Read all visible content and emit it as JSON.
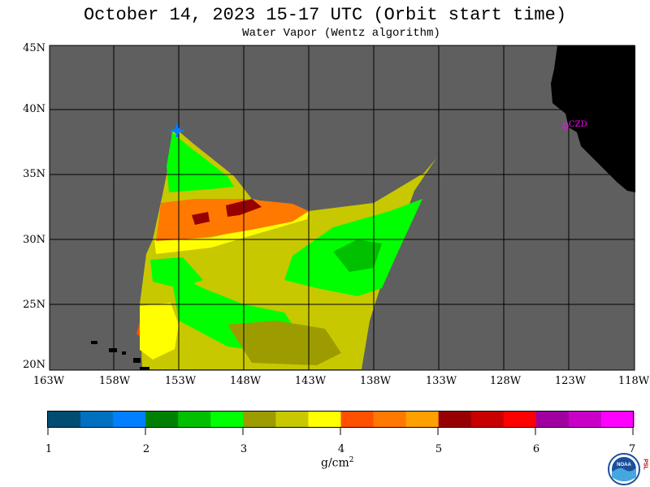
{
  "title": "October 14, 2023  15-17 UTC  (Orbit start time)",
  "subtitle": "Water Vapor (Wentz algorithm)",
  "lat_labels": [
    "45N",
    "40N",
    "35N",
    "30N",
    "25N",
    "20N"
  ],
  "lon_labels": [
    "163W",
    "158W",
    "153W",
    "148W",
    "143W",
    "138W",
    "133W",
    "128W",
    "123W",
    "118W"
  ],
  "station_label": "CZD",
  "colorbar": {
    "tick_labels": [
      "1",
      "2",
      "3",
      "4",
      "5",
      "6",
      "7"
    ],
    "units_base": "g/cm",
    "units_exp": "2",
    "colors": [
      "#004c73",
      "#0070c0",
      "#0080ff",
      "#008000",
      "#00c000",
      "#00ff00",
      "#9c9c00",
      "#c8c800",
      "#ffff00",
      "#ff5000",
      "#ff7800",
      "#ffa000",
      "#960000",
      "#c80000",
      "#ff0000",
      "#a000a0",
      "#c800c8",
      "#ff00ff"
    ]
  },
  "colors": {
    "background": "#5f5f5f",
    "land": "#000000",
    "grid": "#000000"
  },
  "logo": {
    "text": "NOAA",
    "side_letters": "PSL"
  }
}
